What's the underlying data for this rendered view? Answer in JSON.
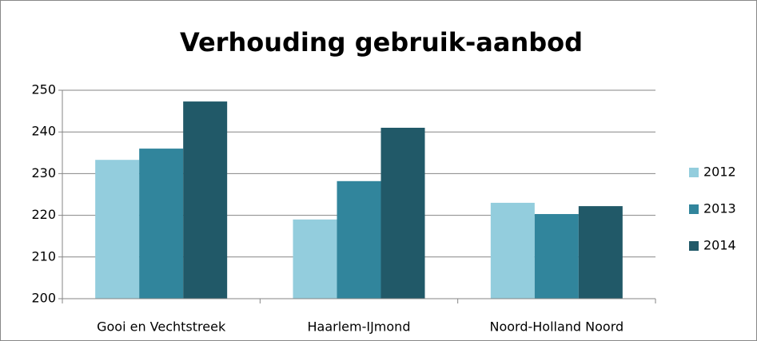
{
  "chart_data": {
    "type": "bar",
    "title": "Verhouding gebruik-aanbod",
    "categories": [
      "Gooi en Vechtstreek",
      "Haarlem-IJmond",
      "Noord-Holland Noord"
    ],
    "series": [
      {
        "name": "2012",
        "color": "#93cddd",
        "values": [
          233.3,
          219,
          223
        ]
      },
      {
        "name": "2013",
        "color": "#31859c",
        "values": [
          236,
          228.2,
          220.3
        ]
      },
      {
        "name": "2014",
        "color": "#215968",
        "values": [
          247.3,
          241,
          222.2
        ]
      }
    ],
    "ylim": [
      200,
      250
    ],
    "yticks": [
      200,
      210,
      220,
      230,
      240,
      250
    ],
    "grid": true,
    "legend": "right"
  }
}
